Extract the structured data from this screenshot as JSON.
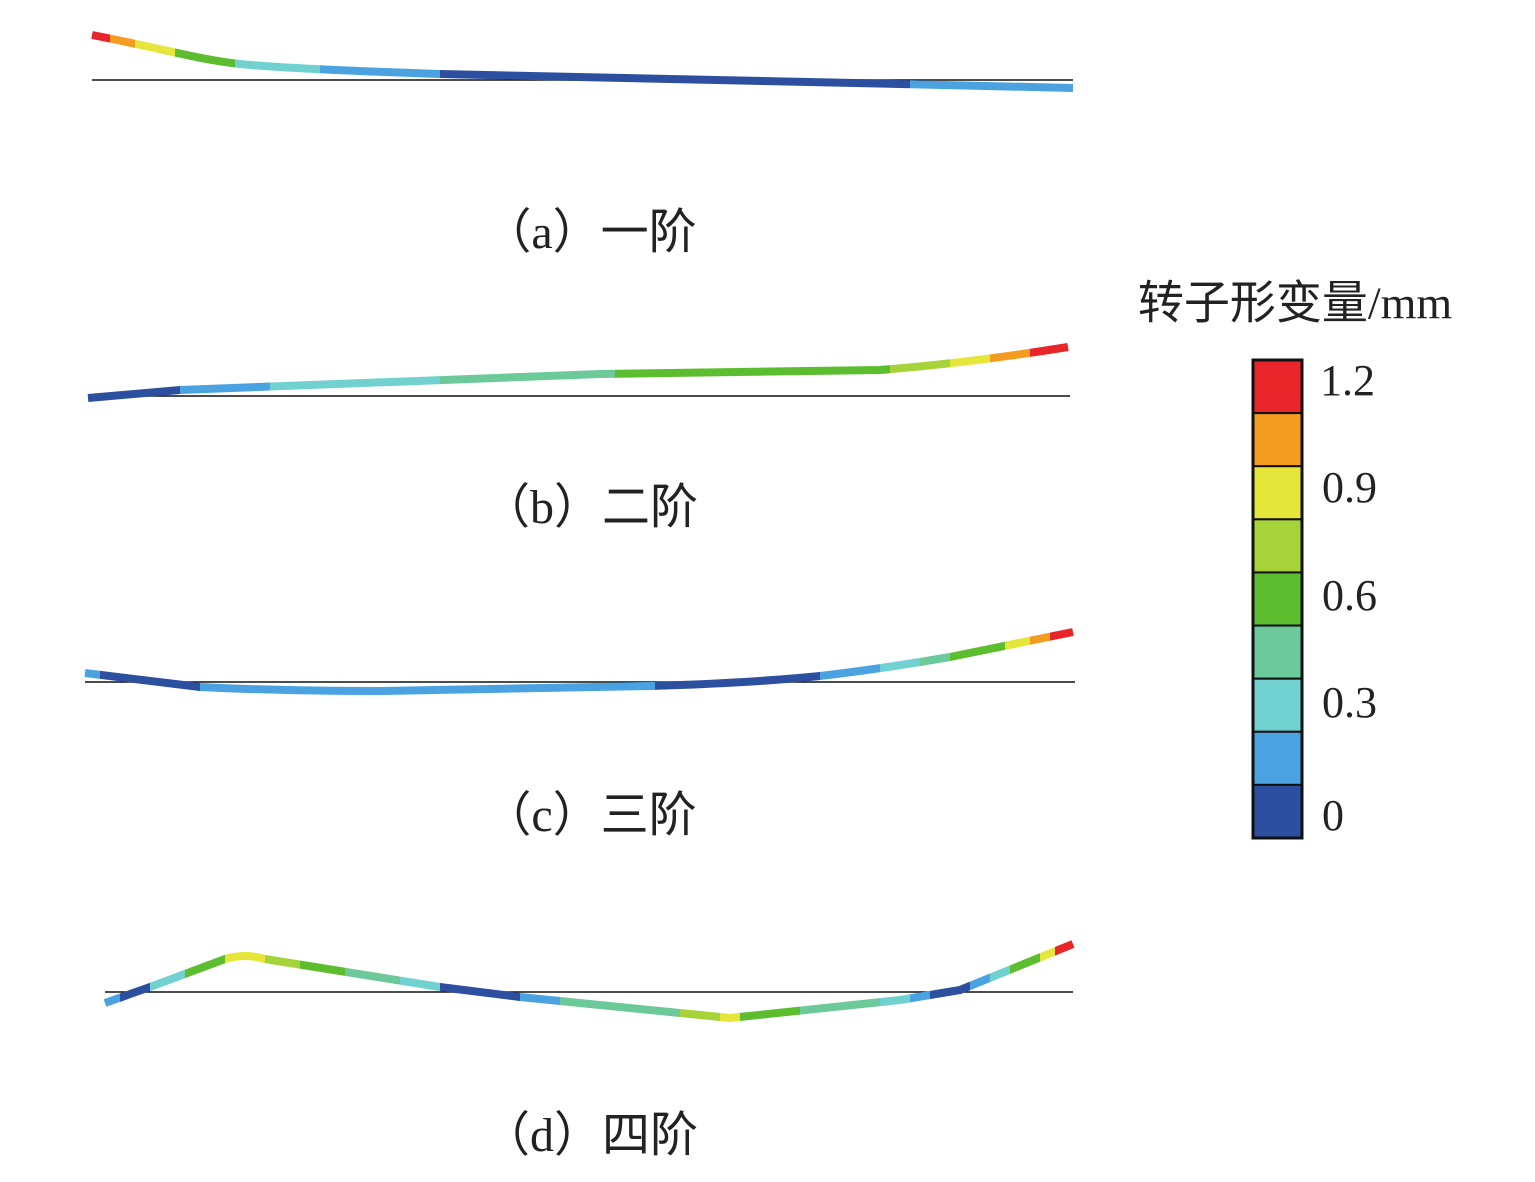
{
  "panels": [
    {
      "caption": "（a）一阶"
    },
    {
      "caption": "（b）二阶"
    },
    {
      "caption": "（c）三阶"
    },
    {
      "caption": "（d）四阶"
    }
  ],
  "colorbar": {
    "title": "转子形变量/mm",
    "labels": [
      "1.2",
      "0.9",
      "0.6",
      "0.3",
      "0"
    ]
  }
}
